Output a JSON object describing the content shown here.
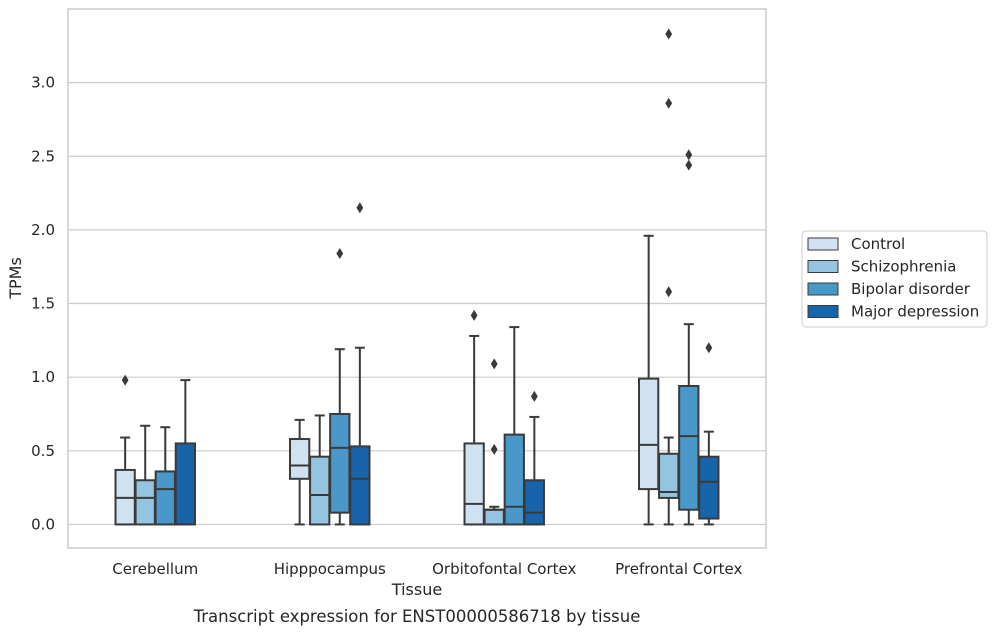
{
  "chart_data": {
    "type": "box",
    "caption": "Transcript expression for ENST00000586718 by tissue",
    "xlabel": "Tissue",
    "ylabel": "TPMs",
    "ylim": [
      -0.16,
      3.5
    ],
    "yticks": [
      0.0,
      0.5,
      1.0,
      1.5,
      2.0,
      2.5,
      3.0
    ],
    "ytick_labels": [
      "0.0",
      "0.5",
      "1.0",
      "1.5",
      "2.0",
      "2.5",
      "3.0"
    ],
    "grid": "horizontal",
    "legend_position": "right-outside",
    "categories": [
      "Cerebellum",
      "Hipppocampus",
      "Orbitofontal Cortex",
      "Prefrontal Cortex"
    ],
    "series": [
      {
        "name": "Control",
        "color": "#d0e1f2",
        "boxes": [
          {
            "whisker_low": 0.0,
            "q1": 0.0,
            "median": 0.18,
            "q3": 0.37,
            "whisker_high": 0.59,
            "outliers": [
              0.98
            ]
          },
          {
            "whisker_low": 0.0,
            "q1": 0.31,
            "median": 0.4,
            "q3": 0.58,
            "whisker_high": 0.71,
            "outliers": []
          },
          {
            "whisker_low": 0.0,
            "q1": 0.0,
            "median": 0.14,
            "q3": 0.55,
            "whisker_high": 1.28,
            "outliers": [
              1.42
            ]
          },
          {
            "whisker_low": 0.0,
            "q1": 0.24,
            "median": 0.54,
            "q3": 0.99,
            "whisker_high": 1.96,
            "outliers": []
          }
        ]
      },
      {
        "name": "Schizophrenia",
        "color": "#94c4df",
        "boxes": [
          {
            "whisker_low": 0.0,
            "q1": 0.0,
            "median": 0.18,
            "q3": 0.3,
            "whisker_high": 0.67,
            "outliers": []
          },
          {
            "whisker_low": 0.0,
            "q1": 0.0,
            "median": 0.2,
            "q3": 0.46,
            "whisker_high": 0.74,
            "outliers": []
          },
          {
            "whisker_low": 0.0,
            "q1": 0.0,
            "median": 0.1,
            "q3": 0.1,
            "whisker_high": 0.12,
            "outliers": [
              0.51,
              1.09
            ]
          },
          {
            "whisker_low": 0.0,
            "q1": 0.18,
            "median": 0.22,
            "q3": 0.48,
            "whisker_high": 0.59,
            "outliers": [
              1.58,
              2.86,
              3.33
            ]
          }
        ]
      },
      {
        "name": "Bipolar disorder",
        "color": "#4a98c9",
        "boxes": [
          {
            "whisker_low": 0.0,
            "q1": 0.0,
            "median": 0.24,
            "q3": 0.36,
            "whisker_high": 0.66,
            "outliers": []
          },
          {
            "whisker_low": 0.0,
            "q1": 0.08,
            "median": 0.52,
            "q3": 0.75,
            "whisker_high": 1.19,
            "outliers": [
              1.84
            ]
          },
          {
            "whisker_low": 0.0,
            "q1": 0.0,
            "median": 0.12,
            "q3": 0.61,
            "whisker_high": 1.34,
            "outliers": []
          },
          {
            "whisker_low": 0.0,
            "q1": 0.1,
            "median": 0.6,
            "q3": 0.94,
            "whisker_high": 1.36,
            "outliers": [
              2.44,
              2.51
            ]
          }
        ]
      },
      {
        "name": "Major depression",
        "color": "#1764ab",
        "boxes": [
          {
            "whisker_low": 0.0,
            "q1": 0.0,
            "median": 0.0,
            "q3": 0.55,
            "whisker_high": 0.98,
            "outliers": []
          },
          {
            "whisker_low": 0.0,
            "q1": 0.0,
            "median": 0.31,
            "q3": 0.53,
            "whisker_high": 1.2,
            "outliers": [
              2.15
            ]
          },
          {
            "whisker_low": 0.0,
            "q1": 0.0,
            "median": 0.08,
            "q3": 0.3,
            "whisker_high": 0.73,
            "outliers": [
              0.87
            ]
          },
          {
            "whisker_low": 0.0,
            "q1": 0.04,
            "median": 0.29,
            "q3": 0.46,
            "whisker_high": 0.63,
            "outliers": [
              1.2
            ]
          }
        ]
      }
    ]
  }
}
